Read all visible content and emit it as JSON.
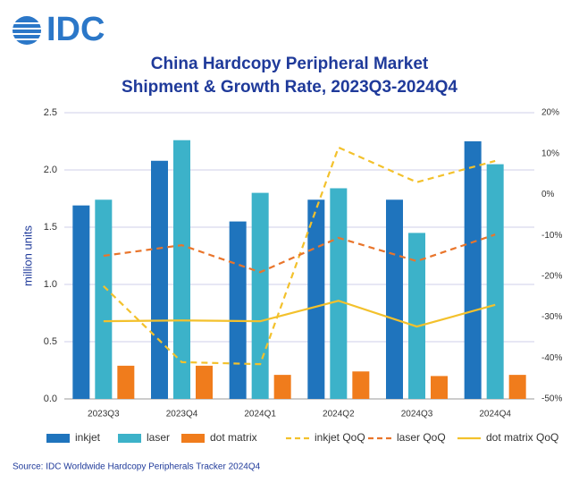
{
  "logo": "IDC",
  "chart_data": {
    "type": "bar",
    "title": "China Hardcopy Peripheral Market",
    "subtitle": "Shipment & Growth Rate, 2023Q3-2024Q4",
    "y_label": "million units",
    "source": "Source: IDC Worldwide Hardcopy Peripherals Tracker 2024Q4",
    "categories": [
      "2023Q3",
      "2023Q4",
      "2024Q1",
      "2024Q2",
      "2024Q3",
      "2024Q4"
    ],
    "series": [
      {
        "name": "inkjet",
        "color": "#1f74bd",
        "values": [
          1.69,
          2.08,
          1.55,
          1.74,
          1.74,
          2.25
        ]
      },
      {
        "name": "laser",
        "color": "#3cb2c9",
        "values": [
          1.74,
          2.26,
          1.8,
          1.84,
          1.45,
          2.05
        ]
      },
      {
        "name": "dot matrix",
        "color": "#f07c1c",
        "values": [
          0.29,
          0.29,
          0.21,
          0.24,
          0.2,
          0.21
        ]
      },
      {
        "name": "inkjet QoQ",
        "color": "#f3c12c",
        "type": "line",
        "dashed": true,
        "axis": "y2",
        "values": [
          -22.4,
          -41.0,
          -41.5,
          11.5,
          3.0,
          8.2
        ]
      },
      {
        "name": "laser QoQ",
        "color": "#e9752b",
        "type": "line",
        "dashed": true,
        "axis": "y2",
        "values": [
          -15.0,
          -12.4,
          -19.0,
          -10.6,
          -16.3,
          -9.8
        ]
      },
      {
        "name": "dot matrix QoQ",
        "color": "#f3c12c",
        "type": "line",
        "dashed": false,
        "axis": "y2",
        "values": [
          -31.0,
          -30.8,
          -31.0,
          -26.0,
          -32.3,
          -27.0
        ]
      }
    ],
    "ylim": [
      0,
      2.5
    ],
    "yticks": [
      {
        "value": 0,
        "label": "0.0"
      },
      {
        "value": 0.5,
        "label": "0.5"
      },
      {
        "value": 1,
        "label": "1.0"
      },
      {
        "value": 1.5,
        "label": "1.5"
      },
      {
        "value": 2,
        "label": "2.0"
      },
      {
        "value": 2.5,
        "label": "2.5"
      }
    ],
    "y2lim": [
      -50,
      20
    ],
    "y2ticks": [
      {
        "value": -50,
        "label": "-50%"
      },
      {
        "value": -40,
        "label": "-40%"
      },
      {
        "value": -30,
        "label": "-30%"
      },
      {
        "value": -20,
        "label": "-20%"
      },
      {
        "value": -10,
        "label": "-10%"
      },
      {
        "value": 0,
        "label": "0%"
      },
      {
        "value": 10,
        "label": "10%"
      },
      {
        "value": 20,
        "label": "20%"
      }
    ],
    "grid": true,
    "legend": "bottom"
  }
}
